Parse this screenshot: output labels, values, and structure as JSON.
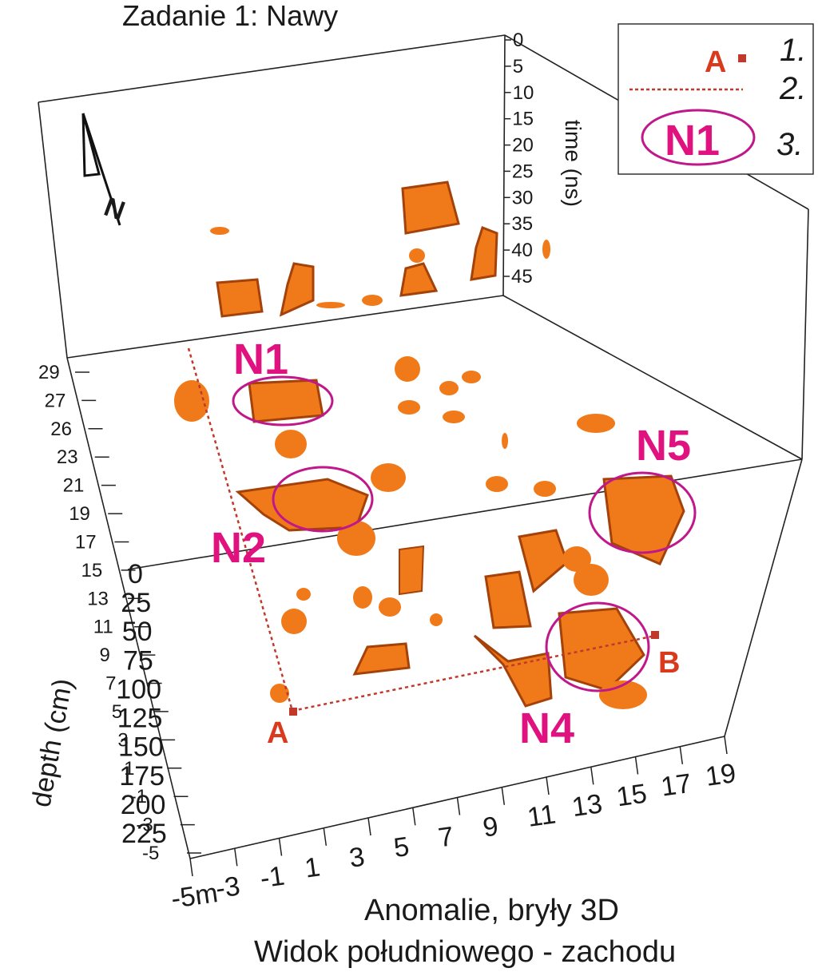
{
  "chart_data": {
    "type": "scatter",
    "title": "Zadanie 1: Nawy",
    "subtitle_line1": "Anomalie, bryły 3D",
    "subtitle_line2": "Widok południowego  - zachodu",
    "xlabel": "",
    "x_ticks": [
      "-5m",
      "-3",
      "-1",
      "1",
      "3",
      "5",
      "7",
      "9",
      "11",
      "13",
      "15",
      "17",
      "19"
    ],
    "y_ticks": [
      "29",
      "27",
      "26",
      "23",
      "21",
      "19",
      "17",
      "15",
      "13",
      "11",
      "9",
      "7",
      "5",
      "3",
      "1",
      "-1",
      "-3",
      "-5"
    ],
    "depth_label": "depth (cm)",
    "depth_ticks": [
      "0",
      "25",
      "50",
      "75",
      "100",
      "125",
      "150",
      "175",
      "200",
      "225"
    ],
    "time_label": "time (ns)",
    "time_ticks": [
      "0",
      "5",
      "10",
      "15",
      "20",
      "25",
      "30",
      "35",
      "40",
      "45"
    ],
    "north_label": "N",
    "anomaly_color": "#f07a1a",
    "anomaly_shadow": "#a4420a",
    "profile_color": "#c0392b",
    "site_color": "#e0127f",
    "sites": [
      "N1",
      "N2",
      "N4",
      "N5"
    ],
    "profile_points": [
      "A",
      "B"
    ],
    "legend": [
      {
        "symbol": "A",
        "label": "1."
      },
      {
        "symbol": "",
        "label": "2."
      },
      {
        "symbol": "N1",
        "label": "3."
      }
    ]
  }
}
